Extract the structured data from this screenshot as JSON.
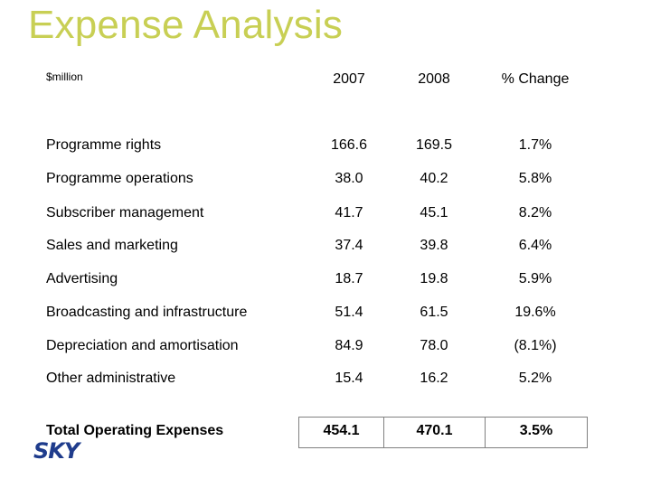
{
  "slide": {
    "title": "Expense Analysis",
    "unit_label": "$million"
  },
  "table": {
    "headers": [
      "2007",
      "2008",
      "% Change"
    ],
    "rows": [
      {
        "label": "Programme rights",
        "v2007": "166.6",
        "v2008": "169.5",
        "change": "1.7%"
      },
      {
        "label": "Programme operations",
        "v2007": "38.0",
        "v2008": "40.2",
        "change": "5.8%"
      },
      {
        "label": "Subscriber management",
        "v2007": "41.7",
        "v2008": "45.1",
        "change": "8.2%"
      },
      {
        "label": "Sales and marketing",
        "v2007": "37.4",
        "v2008": "39.8",
        "change": "6.4%"
      },
      {
        "label": "Advertising",
        "v2007": "18.7",
        "v2008": "19.8",
        "change": "5.9%"
      },
      {
        "label": "Broadcasting and infrastructure",
        "v2007": "51.4",
        "v2008": "61.5",
        "change": "19.6%"
      },
      {
        "label": "Depreciation and amortisation",
        "v2007": "84.9",
        "v2008": "78.0",
        "change": "(8.1%)"
      },
      {
        "label": "Other administrative",
        "v2007": "15.4",
        "v2008": "16.2",
        "change": "5.2%"
      }
    ],
    "total": {
      "label": "Total Operating Expenses",
      "v2007": "454.1",
      "v2008": "470.1",
      "change": "3.5%"
    }
  },
  "logo": {
    "icon": "sky-logo",
    "text": "SKY",
    "color": "#1f3c8c"
  },
  "colors": {
    "title": "#c8cf54",
    "border": "#808080"
  }
}
